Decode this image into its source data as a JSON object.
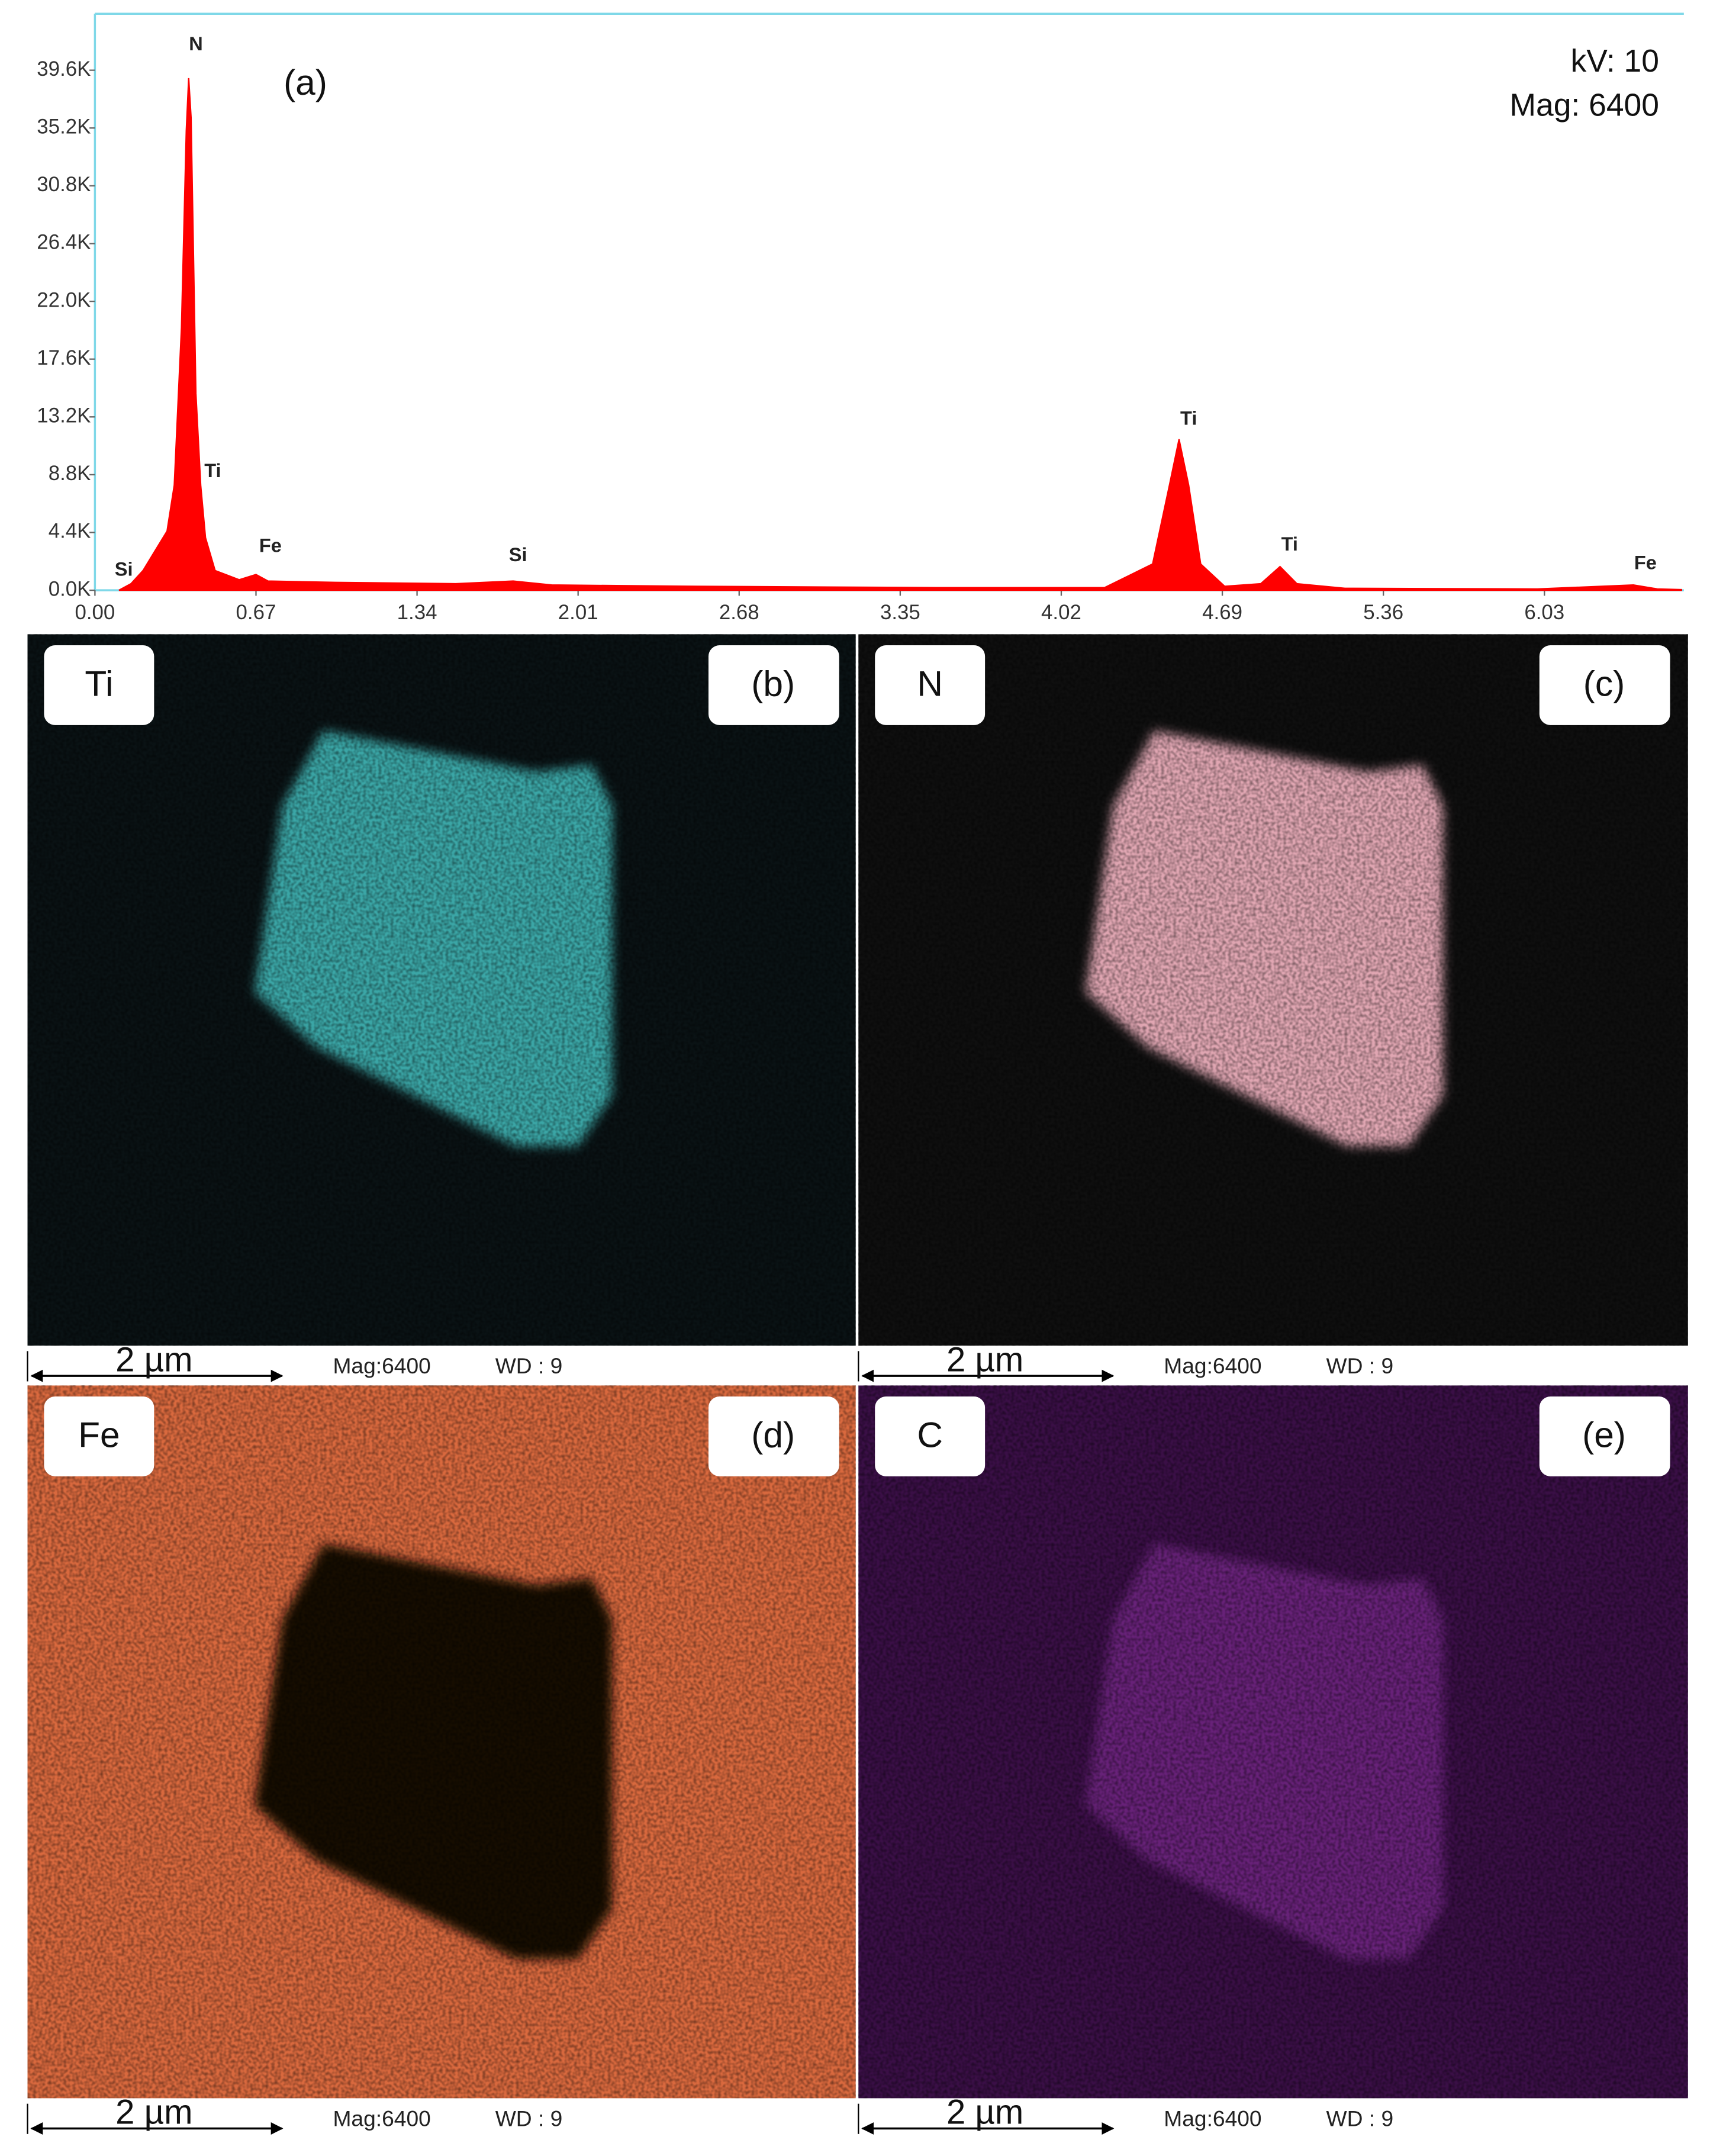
{
  "chart_data": {
    "type": "area",
    "color": "#ff0000",
    "x": [
      0.1,
      0.15,
      0.2,
      0.25,
      0.3,
      0.33,
      0.36,
      0.38,
      0.39,
      0.4,
      0.42,
      0.44,
      0.46,
      0.5,
      0.6,
      0.67,
      0.72,
      1.0,
      1.5,
      1.74,
      1.9,
      2.5,
      3.5,
      4.2,
      4.4,
      4.47,
      4.51,
      4.55,
      4.6,
      4.7,
      4.85,
      4.93,
      5.0,
      5.2,
      6.0,
      6.4,
      6.5,
      6.6
    ],
    "values": [
      0,
      500,
      1500,
      3000,
      4500,
      8000,
      20000,
      35000,
      39000,
      36000,
      15000,
      8000,
      4000,
      1500,
      800,
      1200,
      700,
      600,
      500,
      700,
      400,
      300,
      200,
      200,
      2000,
      8000,
      11500,
      8000,
      2000,
      300,
      500,
      1800,
      500,
      150,
      100,
      400,
      100,
      50
    ],
    "xlim": [
      0,
      6.61
    ],
    "ylim": [
      0,
      43900
    ],
    "xticks": [
      {
        "value": 0,
        "label": "0.00"
      },
      0.67,
      1.34,
      2.01,
      2.68,
      3.35,
      4.02,
      4.69,
      5.36,
      6.03
    ],
    "yticks": [
      {
        "value": 0,
        "label": "0.0K"
      },
      {
        "value": 4400,
        "label": "4.4K"
      },
      {
        "value": 8800,
        "label": "8.8K"
      },
      {
        "value": 13200,
        "label": "13.2K"
      },
      {
        "value": 17600,
        "label": "17.6K"
      },
      {
        "value": 22000,
        "label": "22.0K"
      },
      {
        "value": 26400,
        "label": "26.4K"
      },
      {
        "value": 30800,
        "label": "30.8K"
      },
      {
        "value": 35200,
        "label": "35.2K"
      },
      {
        "value": 39600,
        "label": "39.6K"
      }
    ],
    "peak_labels": [
      {
        "text": "Si",
        "x": 0.12,
        "y": 1500
      },
      {
        "text": "N",
        "x": 0.42,
        "y": 41500
      },
      {
        "text": "Ti",
        "x": 0.49,
        "y": 9000
      },
      {
        "text": "Fe",
        "x": 0.73,
        "y": 3300
      },
      {
        "text": "Si",
        "x": 1.76,
        "y": 2600
      },
      {
        "text": "Ti",
        "x": 4.55,
        "y": 13000
      },
      {
        "text": "Ti",
        "x": 4.97,
        "y": 3400
      },
      {
        "text": "Fe",
        "x": 6.45,
        "y": 2000
      }
    ],
    "panel_label": "(a)",
    "annotations": [
      "kV: 10",
      "Mag: 6400"
    ]
  },
  "panels": [
    {
      "element": "Ti",
      "label": "(b)",
      "scale_bar": "2 µm",
      "mag": "Mag:6400",
      "wd": "WD : 9"
    },
    {
      "element": "N",
      "label": "(c)",
      "scale_bar": "2 µm",
      "mag": "Mag:6400",
      "wd": "WD : 9"
    },
    {
      "element": "Fe",
      "label": "(d)",
      "scale_bar": "2 µm",
      "mag": "Mag:6400",
      "wd": "WD : 9"
    },
    {
      "element": "C",
      "label": "(e)",
      "scale_bar": "2 µm",
      "mag": "Mag:6400",
      "wd": "WD : 9"
    }
  ]
}
